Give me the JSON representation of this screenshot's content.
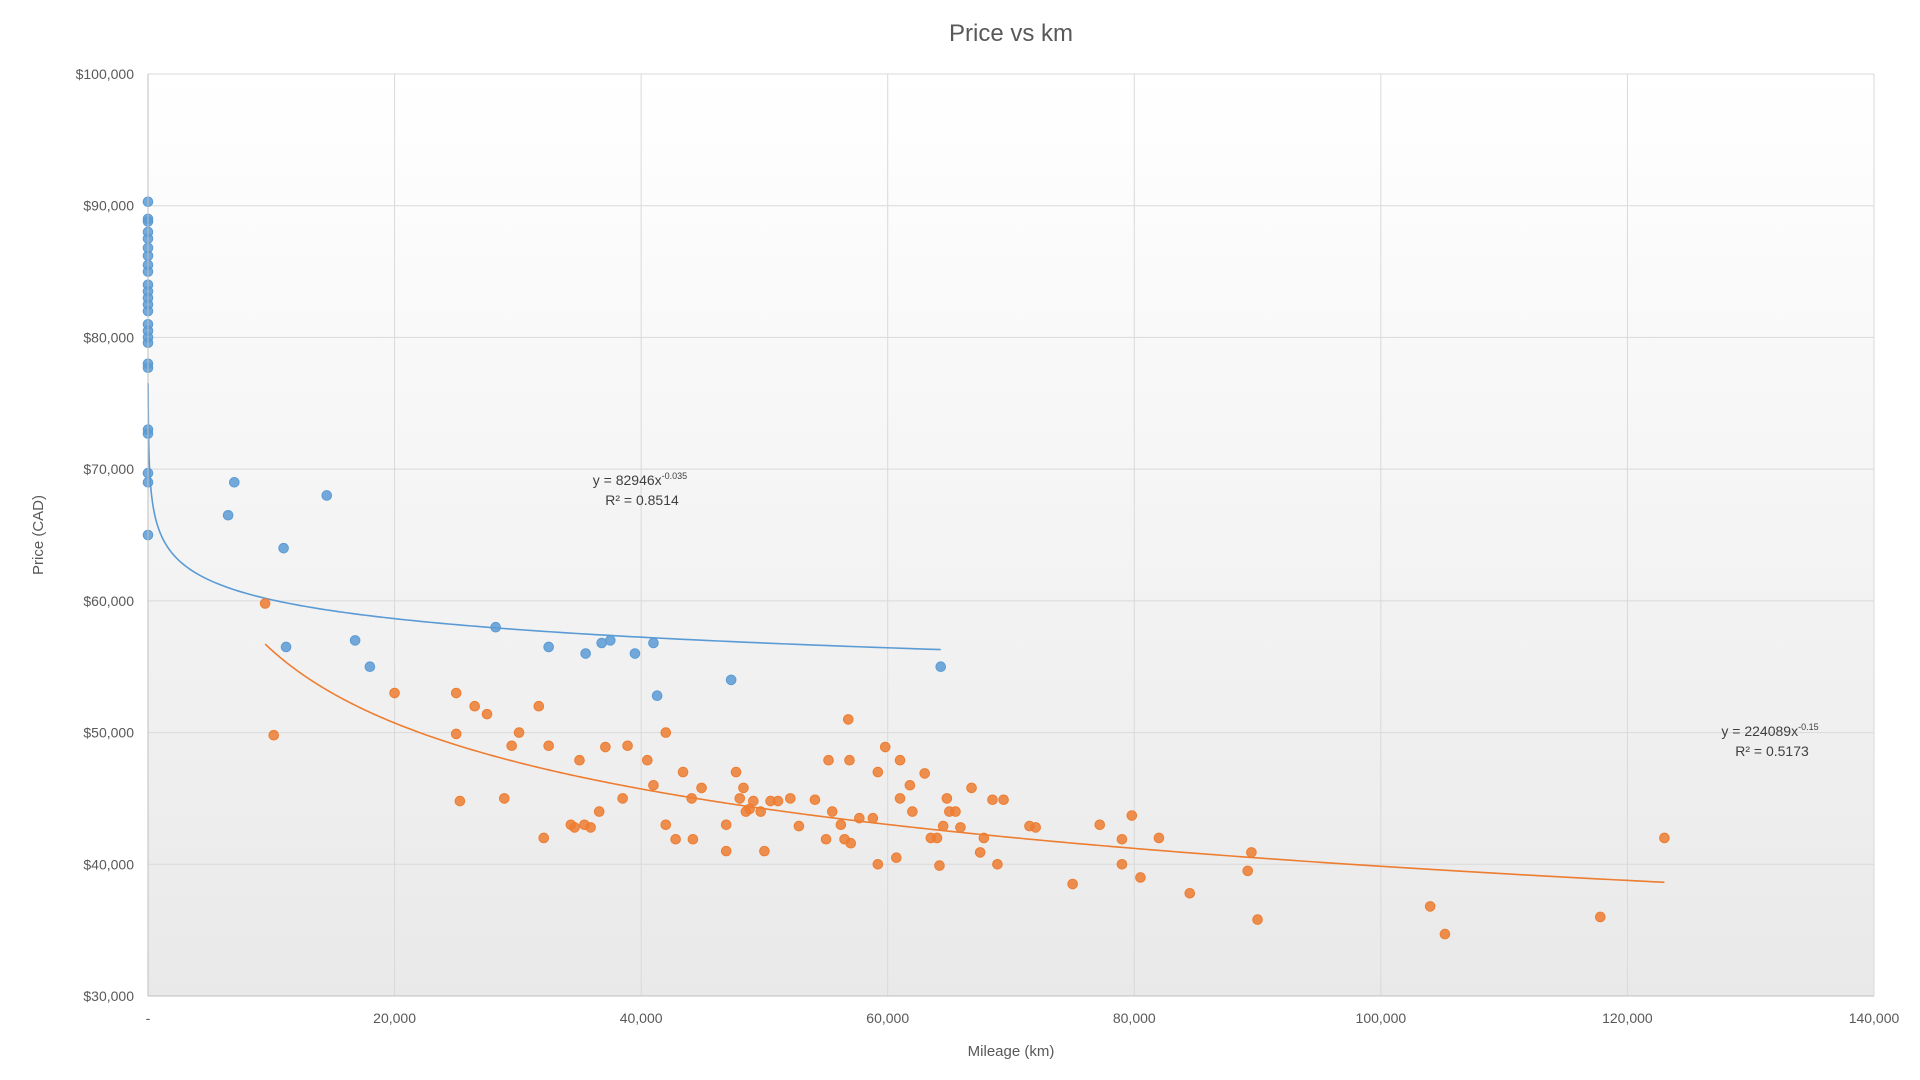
{
  "chart_data": {
    "type": "scatter",
    "title": "Price vs km",
    "xlabel": "Mileage (km)",
    "ylabel": "Price (CAD)",
    "xlim": [
      0,
      140000
    ],
    "ylim": [
      30000,
      100000
    ],
    "x_ticks": [
      {
        "value": 0,
        "label": "-"
      },
      {
        "value": 20000,
        "label": "20,000"
      },
      {
        "value": 40000,
        "label": "40,000"
      },
      {
        "value": 60000,
        "label": "60,000"
      },
      {
        "value": 80000,
        "label": "80,000"
      },
      {
        "value": 100000,
        "label": "100,000"
      },
      {
        "value": 120000,
        "label": "120,000"
      },
      {
        "value": 140000,
        "label": "140,000"
      }
    ],
    "y_ticks": [
      {
        "value": 30000,
        "label": "$30,000"
      },
      {
        "value": 40000,
        "label": "$40,000"
      },
      {
        "value": 50000,
        "label": "$50,000"
      },
      {
        "value": 60000,
        "label": "$60,000"
      },
      {
        "value": 70000,
        "label": "$70,000"
      },
      {
        "value": 80000,
        "label": "$80,000"
      },
      {
        "value": 90000,
        "label": "$90,000"
      },
      {
        "value": 100000,
        "label": "$100,000"
      }
    ],
    "grid": true,
    "legend": "none",
    "series": [
      {
        "color": "#5b9bd5",
        "points": [
          [
            0,
            90300
          ],
          [
            0,
            89000
          ],
          [
            0,
            88800
          ],
          [
            0,
            88000
          ],
          [
            0,
            87500
          ],
          [
            0,
            86800
          ],
          [
            0,
            86200
          ],
          [
            0,
            85500
          ],
          [
            0,
            85000
          ],
          [
            0,
            84000
          ],
          [
            0,
            83500
          ],
          [
            0,
            83000
          ],
          [
            0,
            82500
          ],
          [
            0,
            82000
          ],
          [
            0,
            81000
          ],
          [
            0,
            80500
          ],
          [
            0,
            80000
          ],
          [
            0,
            79600
          ],
          [
            0,
            78000
          ],
          [
            0,
            77700
          ],
          [
            0,
            73000
          ],
          [
            0,
            72700
          ],
          [
            0,
            69700
          ],
          [
            0,
            69000
          ],
          [
            0,
            65000
          ],
          [
            6500,
            66500
          ],
          [
            7000,
            69000
          ],
          [
            11000,
            64000
          ],
          [
            11200,
            56500
          ],
          [
            14500,
            68000
          ],
          [
            16800,
            57000
          ],
          [
            18000,
            55000
          ],
          [
            28200,
            58000
          ],
          [
            32500,
            56500
          ],
          [
            35500,
            56000
          ],
          [
            36800,
            56800
          ],
          [
            37500,
            57000
          ],
          [
            39500,
            56000
          ],
          [
            41000,
            56800
          ],
          [
            41300,
            52800
          ],
          [
            47300,
            54000
          ],
          [
            64300,
            55000
          ]
        ],
        "trendline": {
          "type": "power",
          "a": 82946,
          "b": -0.035,
          "x_range": [
            10,
            64300
          ]
        },
        "equation": {
          "text": "y = 82946x",
          "exponent": "-0.035",
          "r2": "R² = 0.8514"
        }
      },
      {
        "color": "#ed7d31",
        "points": [
          [
            9500,
            59800
          ],
          [
            10200,
            49800
          ],
          [
            20000,
            53000
          ],
          [
            25000,
            53000
          ],
          [
            25000,
            49900
          ],
          [
            25300,
            44800
          ],
          [
            26500,
            52000
          ],
          [
            27500,
            51400
          ],
          [
            28900,
            45000
          ],
          [
            29500,
            49000
          ],
          [
            30100,
            50000
          ],
          [
            31700,
            52000
          ],
          [
            32100,
            42000
          ],
          [
            32500,
            49000
          ],
          [
            34300,
            43000
          ],
          [
            34600,
            42800
          ],
          [
            35000,
            47900
          ],
          [
            35400,
            43000
          ],
          [
            35900,
            42800
          ],
          [
            36600,
            44000
          ],
          [
            37100,
            48900
          ],
          [
            38500,
            45000
          ],
          [
            38900,
            49000
          ],
          [
            40500,
            47900
          ],
          [
            41000,
            46000
          ],
          [
            42000,
            50000
          ],
          [
            42000,
            43000
          ],
          [
            42800,
            41900
          ],
          [
            43400,
            47000
          ],
          [
            44100,
            45000
          ],
          [
            44200,
            41900
          ],
          [
            44900,
            45800
          ],
          [
            46900,
            41000
          ],
          [
            46900,
            43000
          ],
          [
            47700,
            47000
          ],
          [
            48000,
            45000
          ],
          [
            48300,
            45800
          ],
          [
            48500,
            44000
          ],
          [
            48800,
            44200
          ],
          [
            49100,
            44800
          ],
          [
            49700,
            44000
          ],
          [
            50000,
            41000
          ],
          [
            50500,
            44800
          ],
          [
            51100,
            44800
          ],
          [
            52100,
            45000
          ],
          [
            52800,
            42900
          ],
          [
            54100,
            44900
          ],
          [
            55000,
            41900
          ],
          [
            55200,
            47900
          ],
          [
            55500,
            44000
          ],
          [
            56200,
            43000
          ],
          [
            56500,
            41900
          ],
          [
            56800,
            51000
          ],
          [
            56900,
            47900
          ],
          [
            57000,
            41600
          ],
          [
            57700,
            43500
          ],
          [
            58800,
            43500
          ],
          [
            59200,
            47000
          ],
          [
            59200,
            40000
          ],
          [
            59800,
            48900
          ],
          [
            60700,
            40500
          ],
          [
            61000,
            45000
          ],
          [
            61000,
            47900
          ],
          [
            61800,
            46000
          ],
          [
            62000,
            44000
          ],
          [
            63000,
            46900
          ],
          [
            63500,
            42000
          ],
          [
            64000,
            42000
          ],
          [
            64200,
            39900
          ],
          [
            64500,
            42900
          ],
          [
            64800,
            45000
          ],
          [
            65000,
            44000
          ],
          [
            65500,
            44000
          ],
          [
            65900,
            42800
          ],
          [
            66800,
            45800
          ],
          [
            67500,
            40900
          ],
          [
            67800,
            42000
          ],
          [
            68500,
            44900
          ],
          [
            68900,
            40000
          ],
          [
            69400,
            44900
          ],
          [
            71500,
            42900
          ],
          [
            72000,
            42800
          ],
          [
            75000,
            38500
          ],
          [
            77200,
            43000
          ],
          [
            79000,
            41900
          ],
          [
            79000,
            40000
          ],
          [
            79800,
            43700
          ],
          [
            80500,
            39000
          ],
          [
            82000,
            42000
          ],
          [
            84500,
            37800
          ],
          [
            89200,
            39500
          ],
          [
            89500,
            40900
          ],
          [
            90000,
            35800
          ],
          [
            104000,
            36800
          ],
          [
            105200,
            34700
          ],
          [
            117800,
            36000
          ],
          [
            123000,
            42000
          ]
        ],
        "trendline": {
          "type": "power",
          "a": 224089,
          "b": -0.15,
          "x_range": [
            9500,
            123000
          ]
        },
        "equation": {
          "text": "y = 224089x",
          "exponent": "-0.15",
          "r2": "R² = 0.5173"
        }
      }
    ]
  }
}
